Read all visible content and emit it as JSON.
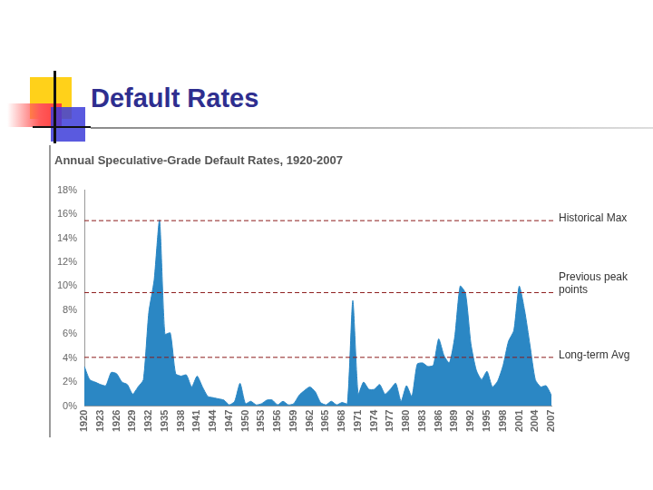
{
  "heading": "Default Rates",
  "chart_data": {
    "type": "area",
    "title": "Annual Speculative-Grade Default Rates, 1920-2007",
    "categories": [
      "1920",
      null,
      null,
      "1923",
      null,
      null,
      "1926",
      null,
      null,
      "1929",
      null,
      null,
      "1932",
      null,
      null,
      "1935",
      null,
      null,
      "1938",
      null,
      null,
      "1941",
      null,
      null,
      "1944",
      null,
      null,
      "1947",
      null,
      null,
      "1950",
      null,
      null,
      "1953",
      null,
      null,
      "1956",
      null,
      null,
      "1959",
      null,
      null,
      "1962",
      null,
      null,
      "1965",
      null,
      null,
      "1968",
      null,
      null,
      "1971",
      null,
      null,
      "1974",
      null,
      null,
      "1977",
      null,
      null,
      "1980",
      null,
      null,
      "1983",
      null,
      null,
      "1986",
      null,
      null,
      "1989",
      null,
      null,
      "1992",
      null,
      null,
      "1995",
      null,
      null,
      "1998",
      null,
      null,
      "2001",
      null,
      null,
      "2004",
      null,
      null,
      "2007"
    ],
    "values": [
      3.3,
      2.2,
      2.0,
      1.8,
      1.7,
      2.8,
      2.7,
      2.0,
      1.8,
      1.0,
      1.6,
      2.2,
      7.8,
      10.5,
      15.5,
      6.0,
      6.1,
      2.7,
      2.5,
      2.6,
      1.6,
      2.5,
      1.6,
      0.8,
      0.7,
      0.6,
      0.5,
      0.1,
      0.4,
      1.9,
      0.2,
      0.4,
      0.1,
      0.2,
      0.5,
      0.5,
      0.1,
      0.4,
      0.1,
      0.2,
      0.9,
      1.3,
      1.6,
      1.2,
      0.3,
      0.1,
      0.4,
      0.1,
      0.3,
      0.2,
      8.8,
      1.0,
      2.0,
      1.4,
      1.4,
      1.8,
      1.0,
      1.4,
      1.9,
      0.4,
      1.7,
      0.8,
      3.5,
      3.6,
      3.3,
      3.4,
      5.6,
      4.2,
      3.6,
      5.8,
      10.0,
      9.4,
      5.2,
      3.0,
      2.2,
      2.9,
      1.6,
      2.1,
      3.4,
      5.4,
      6.3,
      10.0,
      8.0,
      5.1,
      2.2,
      1.6,
      1.7,
      0.9
    ],
    "color": "#2b87c4",
    "ylim": [
      0,
      18
    ],
    "yticks": [
      {
        "value": 0,
        "label": "0%"
      },
      {
        "value": 2,
        "label": "2%"
      },
      {
        "value": 4,
        "label": "4%"
      },
      {
        "value": 6,
        "label": "6%"
      },
      {
        "value": 8,
        "label": "8%"
      },
      {
        "value": 10,
        "label": "10%"
      },
      {
        "value": 12,
        "label": "12%"
      },
      {
        "value": 14,
        "label": "14%"
      },
      {
        "value": 16,
        "label": "16%"
      },
      {
        "value": 18,
        "label": "18%"
      }
    ],
    "grid": false,
    "annotations": [
      {
        "label": "Historical Max",
        "value": 15.5,
        "color": "#8b1a1a",
        "line_style": "dashed"
      },
      {
        "label": "Previous peak points",
        "value": 9.5,
        "color": "#8b1a1a",
        "line_style": "dashed"
      },
      {
        "label": "Long-term Avg",
        "value": 4.1,
        "color": "#8b1a1a",
        "line_style": "dashed"
      }
    ]
  }
}
